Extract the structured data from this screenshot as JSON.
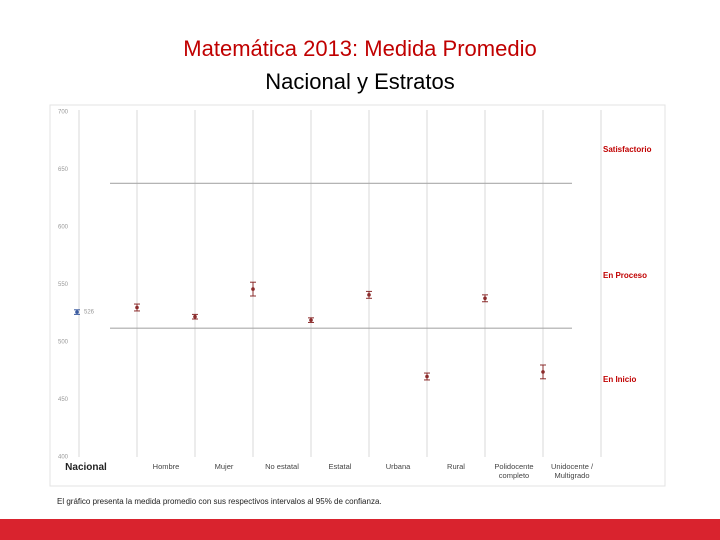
{
  "chart_data": {
    "type": "errorbar",
    "title": "Matemática 2013: Medida Promedio",
    "subtitle": "Nacional y Estratos",
    "categories": [
      "Nacional",
      "Hombre",
      "Mujer",
      "No estatal",
      "Estatal",
      "Urbana",
      "Rural",
      "Polidocente completo",
      "Unidocente / Multigrado"
    ],
    "series": [
      {
        "name": null,
        "color": "#8b2c2c",
        "values": [
          526,
          530,
          522,
          546,
          519,
          541,
          470,
          538,
          474
        ],
        "errors": [
          2,
          3,
          2,
          6,
          2,
          3,
          3,
          3,
          6
        ],
        "value_labels": [
          "526",
          null,
          null,
          null,
          null,
          null,
          null,
          null,
          null
        ]
      }
    ],
    "highlight_color": "#3b5ba0",
    "ylim": [
      400,
      700
    ],
    "yticks": [
      400,
      450,
      500,
      550,
      600,
      650,
      700
    ],
    "reference_lines": [
      638,
      512
    ],
    "bands": [
      "Satisfactorio",
      "En Proceso",
      "En Inicio"
    ],
    "band_color": "#c00000",
    "note": "El gráfico presenta la medida promedio con sus respectivos intervalos al 95% de confianza."
  }
}
